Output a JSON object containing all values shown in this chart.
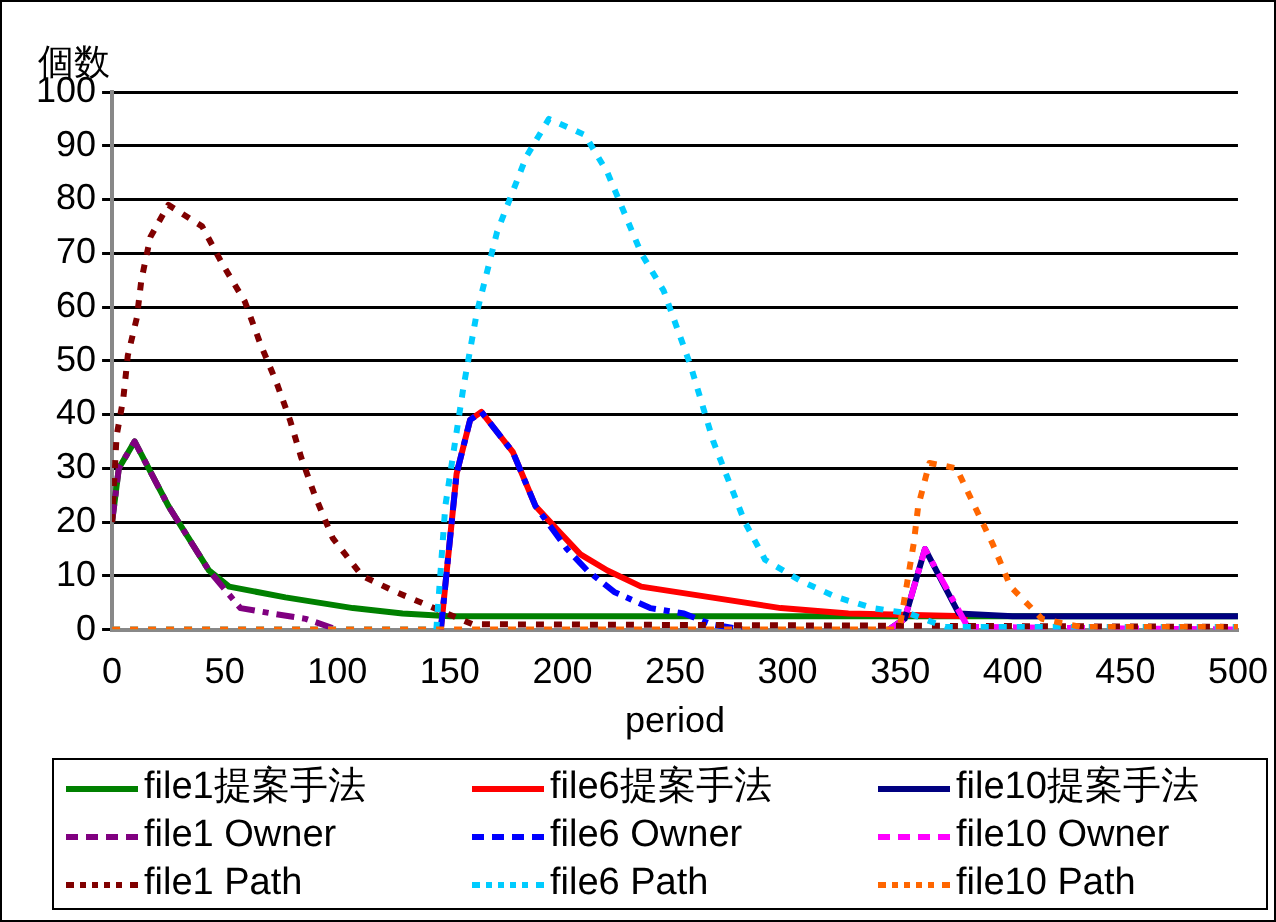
{
  "chart_data": {
    "type": "line",
    "ylabel": "個数",
    "xlabel": "period",
    "xlim": [
      0,
      500
    ],
    "xticks": [
      0,
      50,
      100,
      150,
      200,
      250,
      300,
      350,
      400,
      450,
      500
    ],
    "ylim": [
      0,
      100
    ],
    "yticks": [
      0,
      10,
      20,
      30,
      40,
      50,
      60,
      70,
      80,
      90,
      100
    ],
    "grid": "y",
    "legend": "bottom",
    "marker": "none",
    "series": [
      {
        "name": "file1提案手法",
        "color": "#008000",
        "line_style": "solid",
        "x": [
          0,
          3,
          10,
          25,
          43,
          52,
          77,
          107,
          129,
          150,
          200,
          300,
          400,
          500
        ],
        "values": [
          20,
          30,
          35,
          23,
          11,
          8,
          6,
          4,
          3,
          2.5,
          2.5,
          2.5,
          2.5,
          2.5
        ]
      },
      {
        "name": "file6提案手法",
        "color": "#ff0000",
        "line_style": "solid",
        "x": [
          146,
          153,
          159,
          164,
          178,
          188,
          199,
          208,
          220,
          235,
          266,
          297,
          327,
          380
        ],
        "values": [
          0,
          29,
          39,
          40.5,
          33,
          23,
          18,
          14,
          11,
          8,
          6,
          4,
          3,
          2.5
        ]
      },
      {
        "name": "file10提案手法",
        "color": "#000080",
        "line_style": "solid",
        "x": [
          345,
          352,
          361,
          376,
          400,
          500
        ],
        "values": [
          0,
          2,
          15,
          3,
          2.5,
          2.5
        ]
      },
      {
        "name": "file1 Owner",
        "color": "#800080",
        "line_style": "dashed",
        "x": [
          0,
          3,
          10,
          25,
          43,
          57,
          71,
          86,
          100
        ],
        "values": [
          20,
          30,
          35,
          23,
          11,
          4,
          3,
          2,
          0
        ]
      },
      {
        "name": "file6 Owner",
        "color": "#0000ff",
        "line_style": "dashed",
        "x": [
          146,
          153,
          159,
          164,
          178,
          188,
          202,
          211,
          223,
          239,
          254,
          266,
          280
        ],
        "values": [
          0,
          29,
          39,
          40.5,
          33,
          23,
          15,
          11,
          7,
          4,
          3,
          1,
          0
        ]
      },
      {
        "name": "file10 Owner",
        "color": "#ff00ff",
        "line_style": "dashed",
        "x": [
          345,
          352,
          361,
          380,
          500
        ],
        "values": [
          0,
          2,
          15,
          0.5,
          0
        ]
      },
      {
        "name": "file1 Path",
        "color": "#800000",
        "line_style": "dotted",
        "x": [
          0,
          2,
          5,
          7,
          11,
          13,
          17,
          25,
          40,
          49,
          59,
          66,
          73,
          79,
          84,
          90,
          98,
          111,
          126,
          143,
          160,
          500
        ],
        "values": [
          20,
          36,
          43,
          51,
          58,
          65,
          73,
          79,
          75,
          68,
          61,
          53,
          46,
          39,
          32,
          25,
          17,
          10,
          7,
          4,
          1,
          0.5
        ]
      },
      {
        "name": "file6 Path",
        "color": "#00ccff",
        "line_style": "dotted",
        "x": [
          0,
          144,
          148,
          156,
          162,
          171,
          184,
          194,
          210,
          220,
          235,
          245,
          257,
          267,
          281,
          290,
          306,
          322,
          338,
          354,
          370,
          500
        ],
        "values": [
          0,
          0,
          23,
          45,
          59,
          74,
          88,
          95,
          92,
          85,
          70,
          63,
          49,
          35,
          20,
          13,
          9,
          6,
          4,
          3,
          0.5,
          0.5
        ]
      },
      {
        "name": "file10 Path",
        "color": "#ff6600",
        "line_style": "dotted",
        "x": [
          0,
          348,
          350,
          356,
          358,
          363,
          375,
          383,
          391,
          399,
          413,
          430,
          500
        ],
        "values": [
          0,
          0,
          1,
          16,
          23,
          31,
          30,
          23,
          16,
          8,
          2,
          0.5,
          0.5
        ]
      }
    ]
  }
}
